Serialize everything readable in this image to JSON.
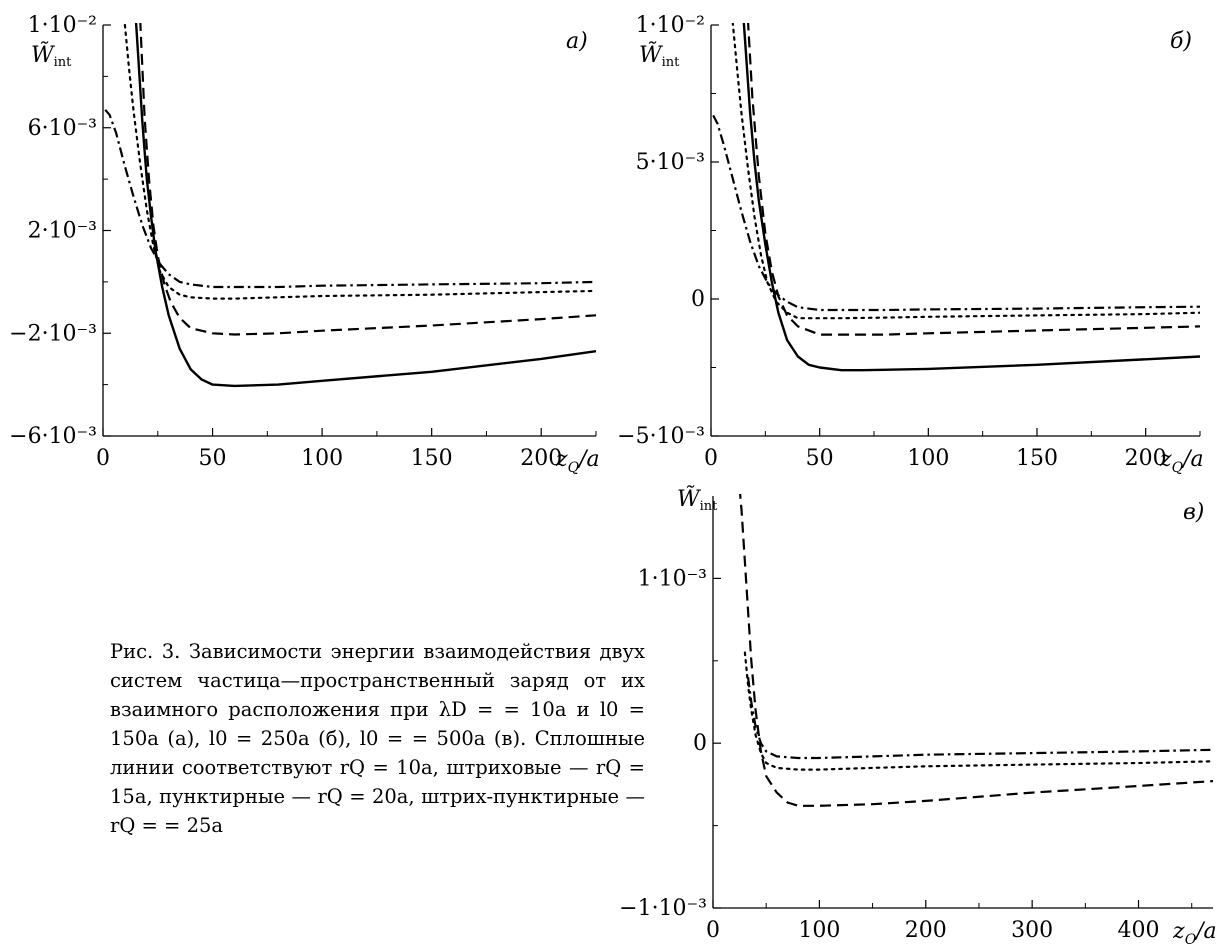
{
  "caption": "Рис. 3. Зависимости энергии взаимодействия двух систем частица—пространственный заряд от их взаимного расположения при λD = = 10a и l0 = 150a (a), l0 = 250a (б), l0 = = 500a (в). Сплошные линии соответствуют rQ = 10a, штриховые — rQ = 15a, пунктирные — rQ = 20a, штрих-пунктирные — rQ = = 25a",
  "chart_data": [
    {
      "type": "line",
      "panel_label": "a)",
      "ylabel_main": "W̃",
      "ylabel_sub": "int",
      "xlabel": "z_Q/a",
      "xlim": [
        0,
        225
      ],
      "ylim": [
        -0.006,
        0.01
      ],
      "xticks": [
        0,
        50,
        100,
        150,
        200
      ],
      "xtick_labels": [
        "0",
        "50",
        "100",
        "150",
        "200"
      ],
      "yticks": [
        -0.006,
        -0.002,
        0.002,
        0.006,
        0.01
      ],
      "ytick_labels": [
        "−6·10⁻³",
        "−2·10⁻³",
        "2·10⁻³",
        "6·10⁻³",
        "1·10⁻²"
      ],
      "grid": false,
      "series": [
        {
          "style": "solid",
          "x": [
            15,
            18,
            20,
            22,
            24,
            27,
            30,
            35,
            40,
            45,
            50,
            60,
            80,
            100,
            150,
            200,
            225
          ],
          "y": [
            0.0102,
            0.0062,
            0.004,
            0.0025,
            0.0012,
            -0.0002,
            -0.0013,
            -0.0026,
            -0.0034,
            -0.0038,
            -0.004,
            -0.00405,
            -0.004,
            -0.00385,
            -0.0035,
            -0.003,
            -0.0027
          ]
        },
        {
          "style": "dashed",
          "x": [
            17,
            19,
            21,
            23,
            25,
            28,
            31,
            35,
            40,
            50,
            60,
            80,
            100,
            150,
            200,
            225
          ],
          "y": [
            0.0102,
            0.0064,
            0.004,
            0.0022,
            0.001,
            -0.0001,
            -0.0008,
            -0.0014,
            -0.0018,
            -0.002,
            -0.00205,
            -0.002,
            -0.0019,
            -0.0017,
            -0.00145,
            -0.0013
          ]
        },
        {
          "style": "dotted",
          "x": [
            10,
            12,
            14,
            17,
            20,
            23,
            26,
            30,
            35,
            40,
            50,
            60,
            80,
            100,
            150,
            200,
            225
          ],
          "y": [
            0.01,
            0.0082,
            0.0066,
            0.0046,
            0.0028,
            0.0014,
            0.0004,
            -0.0002,
            -0.0005,
            -0.0006,
            -0.00065,
            -0.00065,
            -0.0006,
            -0.00055,
            -0.0005,
            -0.0004,
            -0.00035
          ]
        },
        {
          "style": "dashdot",
          "x": [
            1,
            3,
            6,
            10,
            14,
            18,
            22,
            26,
            30,
            35,
            40,
            50,
            60,
            80,
            100,
            150,
            200,
            225
          ],
          "y": [
            0.0067,
            0.0065,
            0.0058,
            0.0045,
            0.0033,
            0.0022,
            0.0013,
            0.0007,
            0.0003,
            0.0,
            -0.0001,
            -0.0002,
            -0.0002,
            -0.0002,
            -0.00015,
            -0.0001,
            -5e-05,
            0.0
          ]
        }
      ]
    },
    {
      "type": "line",
      "panel_label": "б)",
      "ylabel_main": "W̃",
      "ylabel_sub": "int",
      "xlabel": "z_Q/a",
      "xlim": [
        0,
        225
      ],
      "ylim": [
        -0.005,
        0.01
      ],
      "xticks": [
        0,
        50,
        100,
        150,
        200
      ],
      "xtick_labels": [
        "0",
        "50",
        "100",
        "150",
        "200"
      ],
      "yticks": [
        -0.005,
        0.0,
        0.005,
        0.01
      ],
      "ytick_labels": [
        "−5·10⁻³",
        "0",
        "5·10⁻³",
        "1·10⁻²"
      ],
      "grid": false,
      "series": [
        {
          "style": "solid",
          "x": [
            15,
            18,
            20,
            22,
            25,
            28,
            31,
            35,
            40,
            45,
            50,
            60,
            70,
            100,
            150,
            200,
            225
          ],
          "y": [
            0.0102,
            0.0068,
            0.005,
            0.0036,
            0.002,
            0.0006,
            -0.0005,
            -0.0015,
            -0.0021,
            -0.0024,
            -0.0025,
            -0.0026,
            -0.0026,
            -0.00255,
            -0.0024,
            -0.0022,
            -0.0021
          ]
        },
        {
          "style": "dashed",
          "x": [
            17,
            19,
            22,
            25,
            28,
            31,
            35,
            40,
            50,
            60,
            80,
            100,
            150,
            200,
            225
          ],
          "y": [
            0.0102,
            0.0074,
            0.0045,
            0.0024,
            0.001,
            0.0001,
            -0.0006,
            -0.001,
            -0.0013,
            -0.0013,
            -0.0013,
            -0.00125,
            -0.00115,
            -0.00105,
            -0.001
          ]
        },
        {
          "style": "dotted",
          "x": [
            10,
            12,
            14,
            17,
            20,
            23,
            26,
            30,
            35,
            40,
            50,
            60,
            80,
            100,
            150,
            200,
            225
          ],
          "y": [
            0.0101,
            0.0084,
            0.0068,
            0.0048,
            0.003,
            0.0016,
            0.0006,
            -0.0001,
            -0.0005,
            -0.0007,
            -0.0007,
            -0.0007,
            -0.00068,
            -0.00065,
            -0.0006,
            -0.00055,
            -0.0005
          ]
        },
        {
          "style": "dashdot",
          "x": [
            1,
            3,
            6,
            10,
            14,
            18,
            22,
            26,
            30,
            35,
            40,
            50,
            60,
            80,
            100,
            150,
            200,
            225
          ],
          "y": [
            0.0067,
            0.0064,
            0.0056,
            0.0044,
            0.0032,
            0.0021,
            0.0012,
            0.0006,
            0.0002,
            -0.0001,
            -0.0003,
            -0.0004,
            -0.0004,
            -0.0004,
            -0.00038,
            -0.00035,
            -0.0003,
            -0.00028
          ]
        }
      ]
    },
    {
      "type": "line",
      "panel_label": "в)",
      "ylabel_main": "W̃",
      "ylabel_sub": "int",
      "xlabel": "z_Q/a",
      "xlim": [
        0,
        470
      ],
      "ylim": [
        -0.001,
        0.0015
      ],
      "xticks": [
        0,
        100,
        200,
        300,
        400
      ],
      "xtick_labels": [
        "0",
        "100",
        "200",
        "300",
        "400"
      ],
      "yticks": [
        -0.001,
        0.0,
        0.001
      ],
      "ytick_labels": [
        "−1·10⁻³",
        "0",
        "1·10⁻³"
      ],
      "grid": false,
      "series": [
        {
          "style": "dashed",
          "x": [
            25,
            27,
            30,
            33,
            36,
            40,
            45,
            50,
            60,
            70,
            80,
            100,
            150,
            200,
            300,
            400,
            470
          ],
          "y": [
            0.00155,
            0.0014,
            0.0011,
            0.0008,
            0.0005,
            0.0002,
            -5e-05,
            -0.0002,
            -0.0003,
            -0.00036,
            -0.00038,
            -0.00038,
            -0.00037,
            -0.00035,
            -0.0003,
            -0.00026,
            -0.00023
          ]
        },
        {
          "style": "dotted",
          "x": [
            30,
            33,
            36,
            40,
            45,
            50,
            60,
            80,
            100,
            150,
            200,
            300,
            400,
            470
          ],
          "y": [
            0.00055,
            0.00035,
            0.0002,
            5e-05,
            -6e-05,
            -0.00012,
            -0.00015,
            -0.00016,
            -0.00016,
            -0.00015,
            -0.00014,
            -0.00013,
            -0.00012,
            -0.00011
          ]
        },
        {
          "style": "dashdot",
          "x": [
            33,
            36,
            40,
            45,
            50,
            60,
            80,
            100,
            150,
            200,
            300,
            400,
            470
          ],
          "y": [
            0.0004,
            0.00025,
            0.0001,
            0.0,
            -5e-05,
            -8e-05,
            -9e-05,
            -9e-05,
            -8e-05,
            -7e-05,
            -6e-05,
            -5e-05,
            -4e-05
          ]
        }
      ]
    }
  ]
}
